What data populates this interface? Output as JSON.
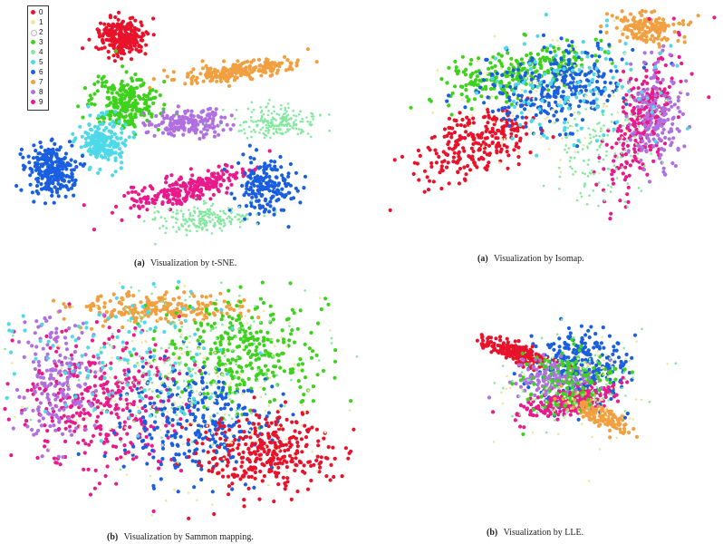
{
  "palette": [
    "#e8132b",
    "#f0e6a0",
    "#f4f4f4",
    "#3ed21c",
    "#85e8a0",
    "#4fd9e8",
    "#1a5fe0",
    "#f0a040",
    "#b070e0",
    "#e81a8c"
  ],
  "chart_data": [
    {
      "type": "scatter",
      "caption_label": "(a)",
      "caption_text": "Visualization by t-SNE.",
      "legend": [
        "0",
        "1",
        "2",
        "3",
        "4",
        "5",
        "6",
        "7",
        "8",
        "9"
      ],
      "clusters": [
        {
          "cls": 0,
          "cx": 0.32,
          "cy": 0.12,
          "sx": 0.035,
          "sy": 0.04,
          "n": 260
        },
        {
          "cls": 7,
          "cx": 0.68,
          "cy": 0.26,
          "sx": 0.1,
          "sy": 0.018,
          "n": 220,
          "rot": -0.2
        },
        {
          "cls": 3,
          "cx": 0.33,
          "cy": 0.4,
          "sx": 0.05,
          "sy": 0.055,
          "n": 260
        },
        {
          "cls": 8,
          "cx": 0.52,
          "cy": 0.48,
          "sx": 0.06,
          "sy": 0.03,
          "n": 180
        },
        {
          "cls": 4,
          "cx": 0.8,
          "cy": 0.48,
          "sx": 0.06,
          "sy": 0.03,
          "n": 200
        },
        {
          "cls": 5,
          "cx": 0.26,
          "cy": 0.56,
          "sx": 0.035,
          "sy": 0.05,
          "n": 200
        },
        {
          "cls": 6,
          "cx": 0.1,
          "cy": 0.68,
          "sx": 0.035,
          "sy": 0.055,
          "n": 260
        },
        {
          "cls": 9,
          "cx": 0.53,
          "cy": 0.76,
          "sx": 0.1,
          "sy": 0.03,
          "n": 260,
          "rot": -0.35
        },
        {
          "cls": 6,
          "cx": 0.76,
          "cy": 0.76,
          "sx": 0.045,
          "sy": 0.06,
          "n": 180
        },
        {
          "cls": 4,
          "cx": 0.56,
          "cy": 0.89,
          "sx": 0.07,
          "sy": 0.03,
          "n": 200
        }
      ]
    },
    {
      "type": "scatter",
      "caption_label": "(a)",
      "caption_text": "Visualization by Isomap.",
      "clusters": [
        {
          "cls": 0,
          "cx": 0.3,
          "cy": 0.58,
          "sx": 0.06,
          "sy": 0.11,
          "n": 260,
          "rot": 0.8
        },
        {
          "cls": 3,
          "cx": 0.42,
          "cy": 0.28,
          "sx": 0.12,
          "sy": 0.05,
          "n": 250,
          "rot": -0.3
        },
        {
          "cls": 6,
          "cx": 0.55,
          "cy": 0.33,
          "sx": 0.12,
          "sy": 0.08,
          "n": 300,
          "rot": -0.4
        },
        {
          "cls": 7,
          "cx": 0.82,
          "cy": 0.08,
          "sx": 0.05,
          "sy": 0.03,
          "n": 160
        },
        {
          "cls": 9,
          "cx": 0.81,
          "cy": 0.48,
          "sx": 0.04,
          "sy": 0.16,
          "n": 260,
          "rot": 0.25
        },
        {
          "cls": 8,
          "cx": 0.85,
          "cy": 0.45,
          "sx": 0.04,
          "sy": 0.12,
          "n": 160
        },
        {
          "cls": 4,
          "cx": 0.68,
          "cy": 0.62,
          "sx": 0.08,
          "sy": 0.12,
          "n": 140
        },
        {
          "cls": 5,
          "cx": 0.6,
          "cy": 0.35,
          "sx": 0.14,
          "sy": 0.12,
          "n": 120
        },
        {
          "cls": 1,
          "cx": 0.55,
          "cy": 0.4,
          "sx": 0.16,
          "sy": 0.16,
          "n": 100
        }
      ]
    },
    {
      "type": "scatter",
      "caption_label": "(b)",
      "caption_text": "Visualization by Sammon mapping.",
      "clusters": [
        {
          "cls": 7,
          "cx": 0.4,
          "cy": 0.1,
          "sx": 0.14,
          "sy": 0.03,
          "n": 220
        },
        {
          "cls": 3,
          "cx": 0.7,
          "cy": 0.3,
          "sx": 0.13,
          "sy": 0.12,
          "n": 320
        },
        {
          "cls": 9,
          "cx": 0.26,
          "cy": 0.5,
          "sx": 0.13,
          "sy": 0.15,
          "n": 380
        },
        {
          "cls": 8,
          "cx": 0.12,
          "cy": 0.42,
          "sx": 0.06,
          "sy": 0.14,
          "n": 180
        },
        {
          "cls": 6,
          "cx": 0.55,
          "cy": 0.6,
          "sx": 0.12,
          "sy": 0.12,
          "n": 300
        },
        {
          "cls": 0,
          "cx": 0.76,
          "cy": 0.74,
          "sx": 0.1,
          "sy": 0.09,
          "n": 320
        },
        {
          "cls": 1,
          "cx": 0.5,
          "cy": 0.45,
          "sx": 0.22,
          "sy": 0.22,
          "n": 200
        },
        {
          "cls": 4,
          "cx": 0.52,
          "cy": 0.35,
          "sx": 0.2,
          "sy": 0.18,
          "n": 180
        },
        {
          "cls": 5,
          "cx": 0.3,
          "cy": 0.3,
          "sx": 0.18,
          "sy": 0.15,
          "n": 120
        }
      ]
    },
    {
      "type": "scatter",
      "caption_label": "(b)",
      "caption_text": "Visualization by LLE.",
      "clusters": [
        {
          "cls": 6,
          "cx": 0.62,
          "cy": 0.38,
          "sx": 0.07,
          "sy": 0.09,
          "n": 320
        },
        {
          "cls": 0,
          "cx": 0.42,
          "cy": 0.3,
          "sx": 0.06,
          "sy": 0.02,
          "n": 200,
          "rot": 0.5
        },
        {
          "cls": 9,
          "cx": 0.58,
          "cy": 0.52,
          "sx": 0.07,
          "sy": 0.03,
          "n": 260,
          "rot": -0.4
        },
        {
          "cls": 8,
          "cx": 0.54,
          "cy": 0.42,
          "sx": 0.06,
          "sy": 0.04,
          "n": 160
        },
        {
          "cls": 7,
          "cx": 0.67,
          "cy": 0.58,
          "sx": 0.06,
          "sy": 0.02,
          "n": 140,
          "rot": 0.7
        },
        {
          "cls": 3,
          "cx": 0.58,
          "cy": 0.42,
          "sx": 0.07,
          "sy": 0.07,
          "n": 120
        },
        {
          "cls": 4,
          "cx": 0.58,
          "cy": 0.45,
          "sx": 0.1,
          "sy": 0.1,
          "n": 100
        },
        {
          "cls": 1,
          "cx": 0.6,
          "cy": 0.45,
          "sx": 0.12,
          "sy": 0.12,
          "n": 80
        }
      ]
    }
  ]
}
